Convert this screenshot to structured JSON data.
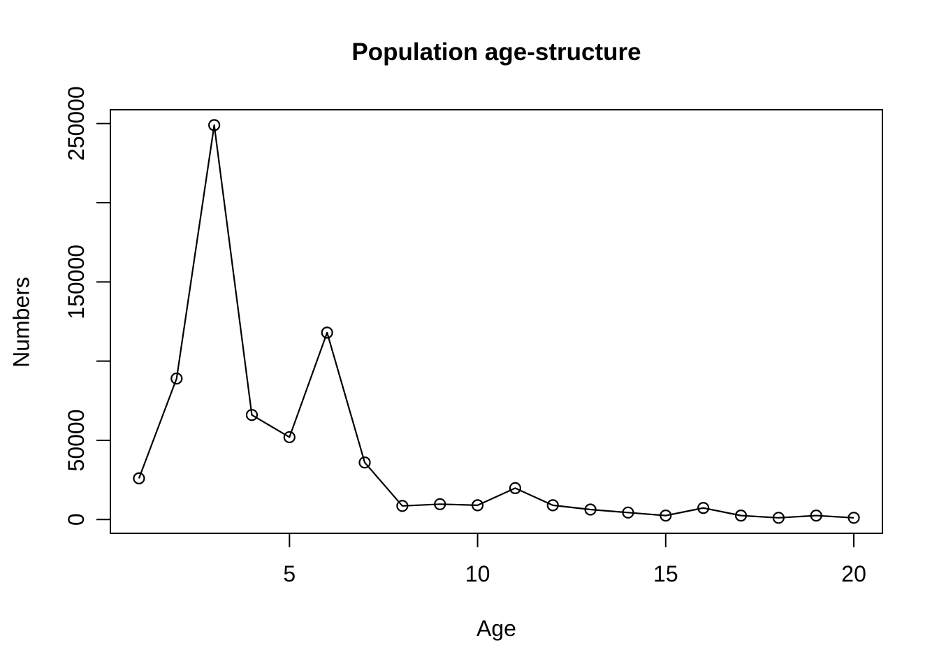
{
  "figure": {
    "background": "#ffffff",
    "foreground": "#000000"
  },
  "chart_data": {
    "type": "line",
    "title": "Population age-structure",
    "xlabel": "Age",
    "ylabel": "Numbers",
    "x": [
      1,
      2,
      3,
      4,
      5,
      6,
      7,
      8,
      9,
      10,
      11,
      12,
      13,
      14,
      15,
      16,
      17,
      18,
      19,
      20
    ],
    "y": [
      26000,
      89000,
      249000,
      66000,
      52000,
      118000,
      36000,
      8600,
      9700,
      9000,
      19800,
      9000,
      6300,
      4400,
      2500,
      7300,
      2500,
      1100,
      2500,
      1100
    ],
    "xlim": [
      0.24,
      20.76
    ],
    "ylim": [
      -8700,
      258700
    ],
    "x_ticks": [
      5,
      10,
      15,
      20
    ],
    "x_tick_labels": [
      "5",
      "10",
      "15",
      "20"
    ],
    "y_ticks": [
      0,
      50000,
      100000,
      150000,
      200000,
      250000
    ],
    "y_tick_labels": [
      "0",
      "50000",
      "",
      "150000",
      "",
      "250000"
    ],
    "grid": false,
    "legend": "none",
    "marker": "open-circle",
    "line_color": "#000000",
    "box_color": "#000000"
  }
}
